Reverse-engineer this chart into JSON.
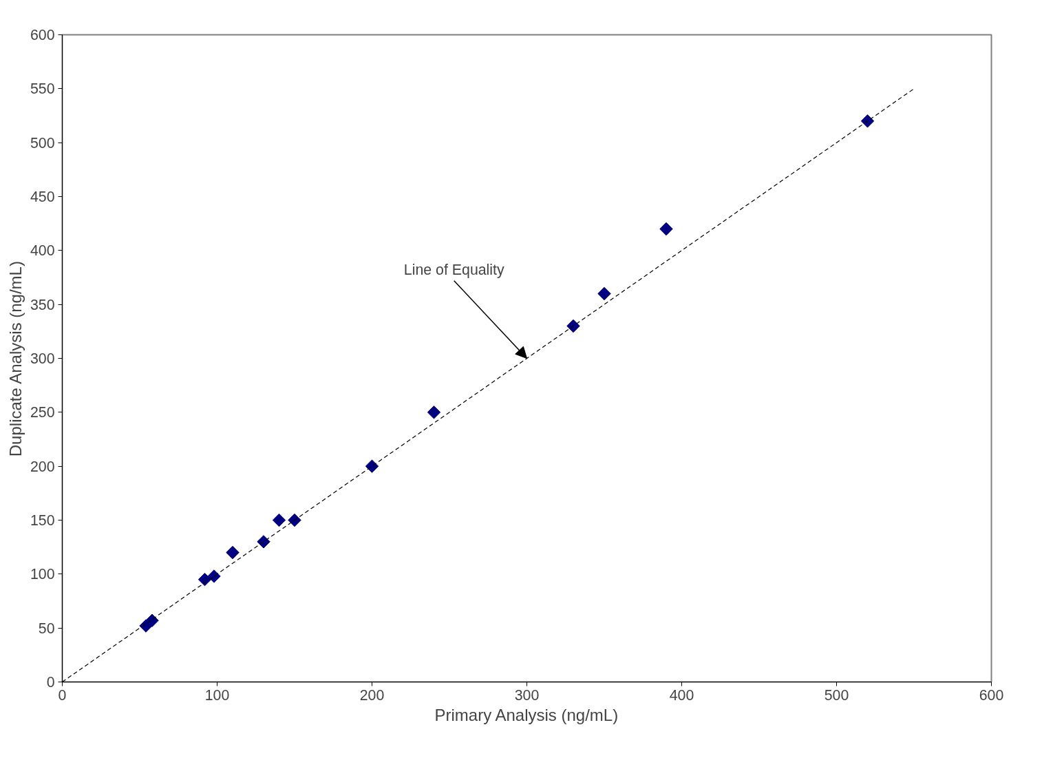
{
  "chart_data": {
    "type": "scatter",
    "xlabel": "Primary Analysis (ng/mL)",
    "ylabel": "Duplicate Analysis (ng/mL)",
    "x": [
      54,
      58,
      92,
      98,
      110,
      130,
      140,
      150,
      200,
      240,
      330,
      350,
      390,
      520
    ],
    "series": [
      {
        "color": "#000080",
        "marker": "diamond",
        "values": [
          52,
          57,
          95,
          98,
          120,
          130,
          150,
          150,
          200,
          250,
          330,
          360,
          420,
          520
        ]
      },
      {
        "type": "line",
        "color": "#000000",
        "line_style": "dashed",
        "marker": "none",
        "x": [
          0,
          550
        ],
        "values": [
          0,
          550
        ]
      }
    ],
    "annotations": [
      {
        "text": "Line of Equality",
        "x": 300,
        "y": 300
      }
    ],
    "xlim": [
      0,
      600
    ],
    "ylim": [
      0,
      600
    ],
    "xticks": [
      0,
      100,
      200,
      300,
      400,
      500,
      600
    ],
    "yticks": [
      0,
      50,
      100,
      150,
      200,
      250,
      300,
      350,
      400,
      450,
      500,
      550,
      600
    ],
    "grid": false
  }
}
